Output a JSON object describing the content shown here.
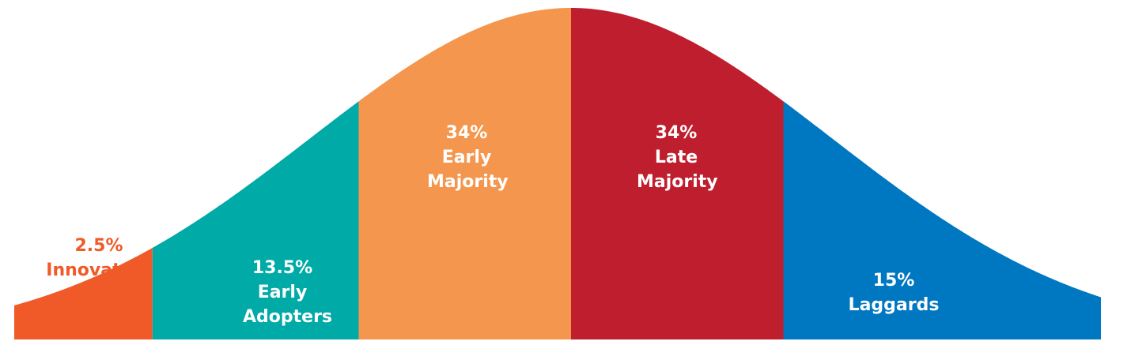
{
  "chart_data": {
    "type": "bell",
    "categories": [
      "Innovators",
      "Early Adopters",
      "Early Majority",
      "Late Majority",
      "Laggards"
    ],
    "values": [
      2.5,
      13.5,
      34,
      34,
      15
    ],
    "value_labels": [
      "2.5%",
      "13.5%",
      "34%",
      "34%",
      "15%"
    ],
    "colors": [
      "#f05a28",
      "#00aaa7",
      "#f4964d",
      "#bf1e2e",
      "#0077c1"
    ]
  }
}
